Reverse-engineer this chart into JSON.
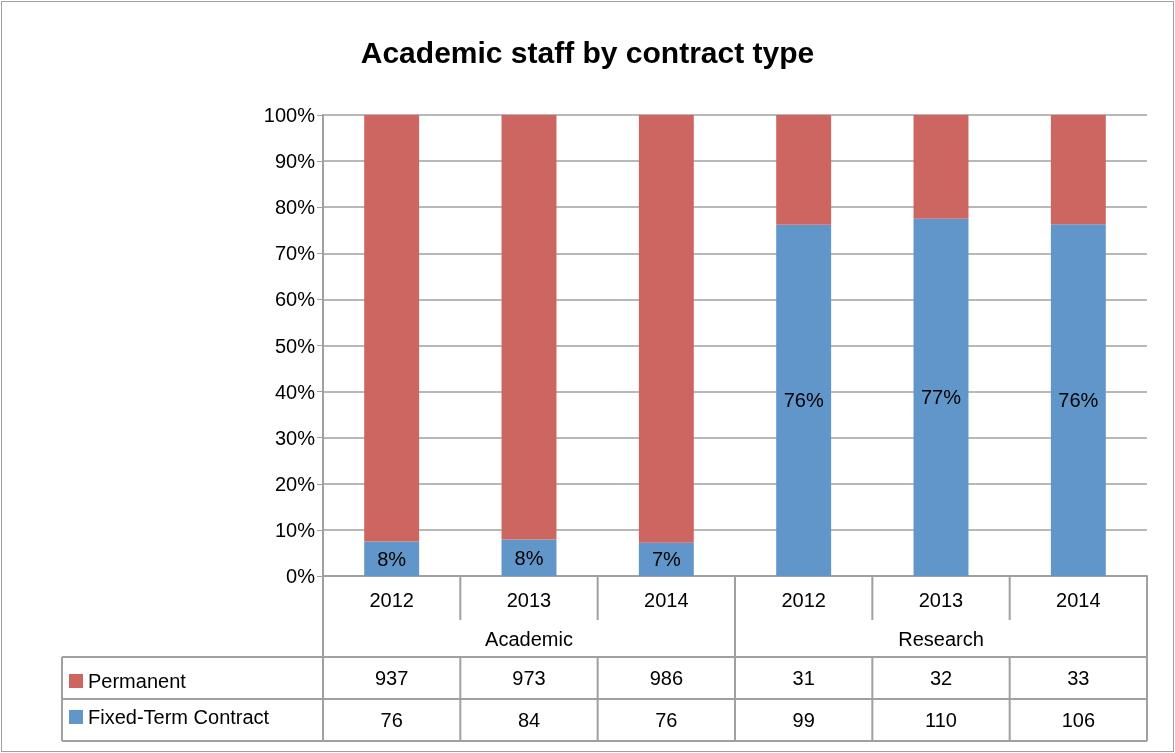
{
  "chart_data": {
    "type": "bar",
    "title": "Academic staff by contract type",
    "stacked": true,
    "categories": [
      "2012",
      "2013",
      "2014",
      "2012",
      "2013",
      "2014"
    ],
    "series": [
      {
        "name": "Fixed-Term Contract",
        "color": "#6096c9",
        "values": [
          7.5,
          7.9,
          7.2,
          76.2,
          77.5,
          76.3
        ],
        "value_labels": [
          "8%",
          "8%",
          "7%",
          "76%",
          "77%",
          "76%"
        ]
      },
      {
        "name": "Permanent",
        "color": "#cd6660",
        "values": [
          92.5,
          92.1,
          92.8,
          23.8,
          22.5,
          23.7
        ]
      }
    ],
    "ylim": [
      0,
      100
    ],
    "yticks": [
      {
        "value": 0,
        "label": "0%"
      },
      {
        "value": 10,
        "label": "10%"
      },
      {
        "value": 20,
        "label": "20%"
      },
      {
        "value": 30,
        "label": "30%"
      },
      {
        "value": 40,
        "label": "40%"
      },
      {
        "value": 50,
        "label": "50%"
      },
      {
        "value": 60,
        "label": "60%"
      },
      {
        "value": 70,
        "label": "70%"
      },
      {
        "value": 80,
        "label": "80%"
      },
      {
        "value": 90,
        "label": "90%"
      },
      {
        "value": 100,
        "label": "100%"
      }
    ],
    "grid": "y",
    "legend": "bottom left",
    "annotations": [
      "Academic",
      "Research",
      "937",
      "973",
      "986",
      "31",
      "32",
      "33",
      "76",
      "84",
      "76",
      "99",
      "110",
      "106"
    ]
  }
}
